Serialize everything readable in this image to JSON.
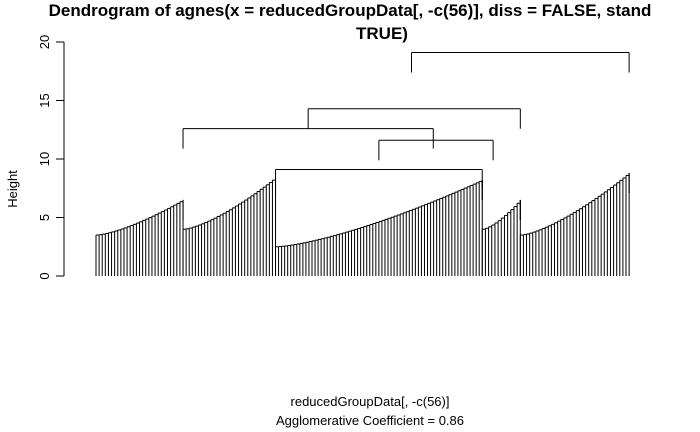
{
  "chart_data": {
    "type": "dendrogram",
    "title_line1": "Dendrogram of  agnes(x = reducedGroupData[, -c(56)], diss = FALSE, stand",
    "title_line2": "TRUE)",
    "xlabel": "reducedGroupData[, -c(56)]",
    "sublabel": "Agglomerative Coefficient =  0.86",
    "ylabel": "Height",
    "ylim": [
      0,
      20
    ],
    "yticks": [
      "0",
      "5",
      "10",
      "15",
      "20"
    ],
    "merges": [
      {
        "name": "root",
        "height": 19.1,
        "x_left": 0.58,
        "x_right": 0.98
      },
      {
        "name": "left-main",
        "height": 14.3,
        "x_left": 0.39,
        "x_right": 0.78
      },
      {
        "name": "left-pair",
        "height": 12.6,
        "x_left": 0.16,
        "x_right": 0.62
      },
      {
        "name": "middle-pair",
        "height": 11.6,
        "x_left": 0.52,
        "x_right": 0.73
      },
      {
        "name": "cluster-3-4",
        "height": 9.1,
        "x_left": 0.33,
        "x_right": 0.71
      },
      {
        "name": "cluster-1",
        "height": 6.5,
        "x_left": 0.16,
        "x_right": 0.16
      },
      {
        "name": "cluster-2",
        "height": 8.4,
        "x_left": 0.33,
        "x_right": 0.33
      },
      {
        "name": "cluster-4",
        "height": 8.2,
        "x_left": 0.71,
        "x_right": 0.71
      },
      {
        "name": "cluster-5",
        "height": 6.5,
        "x_left": 0.78,
        "x_right": 0.78
      },
      {
        "name": "cluster-6",
        "height": 8.8,
        "x_left": 0.98,
        "x_right": 0.98
      }
    ],
    "leaf_clusters": [
      {
        "x_start": 0.0,
        "x_end": 0.16,
        "top": 6.5,
        "base": 3.5
      },
      {
        "x_start": 0.16,
        "x_end": 0.33,
        "top": 8.4,
        "base": 4.0
      },
      {
        "x_start": 0.33,
        "x_end": 0.71,
        "top": 8.2,
        "base": 2.5
      },
      {
        "x_start": 0.71,
        "x_end": 0.78,
        "top": 6.5,
        "base": 4.0
      },
      {
        "x_start": 0.78,
        "x_end": 0.98,
        "top": 8.8,
        "base": 3.5
      }
    ],
    "grid": false,
    "legend": "none"
  }
}
